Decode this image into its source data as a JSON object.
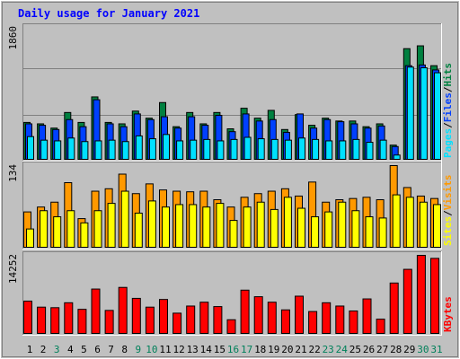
{
  "chart_data": [
    {
      "type": "bar",
      "title": "Daily usage for January 2021",
      "ymax_label": "1860",
      "ylim": [
        0,
        1860
      ],
      "legend": [
        "Pages",
        "Files",
        "Hits"
      ],
      "legend_separator": "/",
      "categories": [
        "1",
        "2",
        "3",
        "4",
        "5",
        "6",
        "7",
        "8",
        "9",
        "10",
        "11",
        "12",
        "13",
        "14",
        "15",
        "16",
        "17",
        "18",
        "19",
        "20",
        "21",
        "22",
        "23",
        "24",
        "25",
        "26",
        "27",
        "28",
        "29",
        "30",
        "31"
      ],
      "weekend_days": [
        "3",
        "9",
        "10",
        "16",
        "17",
        "23",
        "24",
        "30",
        "31"
      ],
      "series": [
        {
          "name": "Hits",
          "color": "#008040",
          "values": [
            520,
            500,
            440,
            660,
            520,
            880,
            520,
            500,
            680,
            580,
            800,
            460,
            660,
            500,
            660,
            430,
            720,
            580,
            690,
            420,
            630,
            480,
            580,
            540,
            540,
            460,
            500,
            200,
            1560,
            1600,
            1320
          ]
        },
        {
          "name": "Files",
          "color": "#0040ff",
          "values": [
            500,
            480,
            420,
            560,
            460,
            840,
            500,
            460,
            640,
            560,
            600,
            440,
            600,
            480,
            620,
            390,
            640,
            540,
            560,
            380,
            640,
            440,
            560,
            530,
            500,
            440,
            470,
            180,
            1320,
            1330,
            1260
          ]
        },
        {
          "name": "Pages",
          "color": "#00e0ff",
          "values": [
            320,
            270,
            260,
            300,
            250,
            260,
            270,
            250,
            330,
            290,
            350,
            260,
            270,
            280,
            260,
            280,
            310,
            290,
            280,
            270,
            300,
            280,
            260,
            260,
            280,
            240,
            270,
            60,
            1300,
            1290,
            1220
          ]
        }
      ]
    },
    {
      "type": "bar",
      "ymax_label": "134",
      "ylim": [
        0,
        134
      ],
      "legend": [
        "Sites",
        "Visits"
      ],
      "legend_separator": "/",
      "categories": [
        "1",
        "2",
        "3",
        "4",
        "5",
        "6",
        "7",
        "8",
        "9",
        "10",
        "11",
        "12",
        "13",
        "14",
        "15",
        "16",
        "17",
        "18",
        "19",
        "20",
        "21",
        "22",
        "23",
        "24",
        "25",
        "26",
        "27",
        "28",
        "29",
        "30",
        "31"
      ],
      "series": [
        {
          "name": "Visits",
          "color": "#ff9900",
          "values": [
            58,
            66,
            74,
            106,
            47,
            92,
            96,
            120,
            88,
            104,
            94,
            92,
            91,
            92,
            78,
            66,
            82,
            88,
            92,
            96,
            84,
            107,
            74,
            78,
            80,
            82,
            78,
            134,
            98,
            84,
            80
          ]
        },
        {
          "name": "Sites",
          "color": "#ffff00",
          "values": [
            30,
            60,
            50,
            60,
            40,
            60,
            72,
            92,
            56,
            76,
            66,
            70,
            70,
            66,
            72,
            44,
            66,
            74,
            62,
            82,
            64,
            50,
            58,
            74,
            60,
            50,
            48,
            86,
            82,
            74,
            70
          ]
        }
      ]
    },
    {
      "type": "bar",
      "ymax_label": "14252",
      "ylim": [
        0,
        14252
      ],
      "legend": [
        "KBytes"
      ],
      "categories": [
        "1",
        "2",
        "3",
        "4",
        "5",
        "6",
        "7",
        "8",
        "9",
        "10",
        "11",
        "12",
        "13",
        "14",
        "15",
        "16",
        "17",
        "18",
        "19",
        "20",
        "21",
        "22",
        "23",
        "24",
        "25",
        "26",
        "27",
        "28",
        "29",
        "30",
        "31"
      ],
      "series": [
        {
          "name": "KBytes",
          "color": "#ff0000",
          "values": [
            5900,
            4800,
            4700,
            5600,
            4400,
            8100,
            4200,
            8400,
            6400,
            4800,
            6200,
            3700,
            5000,
            5700,
            4900,
            2500,
            7900,
            6700,
            5700,
            4300,
            6800,
            4000,
            5600,
            5000,
            4100,
            6300,
            2600,
            9200,
            11700,
            14252,
            13700
          ]
        }
      ]
    }
  ]
}
